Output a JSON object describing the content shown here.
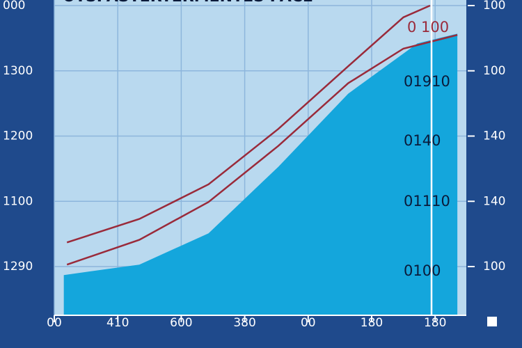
{
  "chart_data": {
    "type": "area-line",
    "title": "UTSPASTERTERMENTES PACE",
    "x": [
      0.15,
      1.34,
      2.43,
      3.53,
      4.63,
      5.72,
      6.35
    ],
    "area": {
      "color": "#14a6dc",
      "values": [
        -0.13,
        0.03,
        0.51,
        1.53,
        2.65,
        3.42,
        3.57
      ]
    },
    "series": [
      {
        "color": "#9a2a3a",
        "x": [
          0.2,
          1.34,
          2.43,
          3.53,
          4.63,
          5.5,
          5.92
        ],
        "values": [
          0.37,
          0.73,
          1.26,
          2.11,
          3.07,
          3.82,
          4.0
        ]
      },
      {
        "color": "#9a2a3a",
        "x": [
          0.2,
          1.34,
          2.43,
          3.53,
          4.63,
          5.5,
          6.35
        ],
        "values": [
          0.03,
          0.41,
          0.99,
          1.85,
          2.81,
          3.34,
          3.55
        ]
      }
    ],
    "xlim": [
      0,
      6.5
    ],
    "xticks": [
      {
        "value": 0,
        "label": "00"
      },
      {
        "value": 1,
        "label": "410"
      },
      {
        "value": 2,
        "label": "600"
      },
      {
        "value": 3,
        "label": "380"
      },
      {
        "value": 4,
        "label": "00"
      },
      {
        "value": 5,
        "label": "180"
      },
      {
        "value": 6,
        "label": "180"
      }
    ],
    "ylim": [
      -0.75,
      4.1
    ],
    "yticks": [
      {
        "value": 4,
        "label": "000"
      },
      {
        "value": 3,
        "label": "1300"
      },
      {
        "value": 2,
        "label": "1200"
      },
      {
        "value": 1,
        "label": "1100"
      },
      {
        "value": 0,
        "label": "1290"
      }
    ],
    "y2ticks": [
      {
        "value": 4,
        "label": "100"
      },
      {
        "value": 3,
        "label": "100"
      },
      {
        "value": 2,
        "label": "140"
      },
      {
        "value": 1,
        "label": "140"
      },
      {
        "value": 0,
        "label": "100"
      }
    ],
    "annotations": [
      "0 100",
      "01910",
      "0140",
      "01110",
      "0100"
    ],
    "grid": true
  }
}
